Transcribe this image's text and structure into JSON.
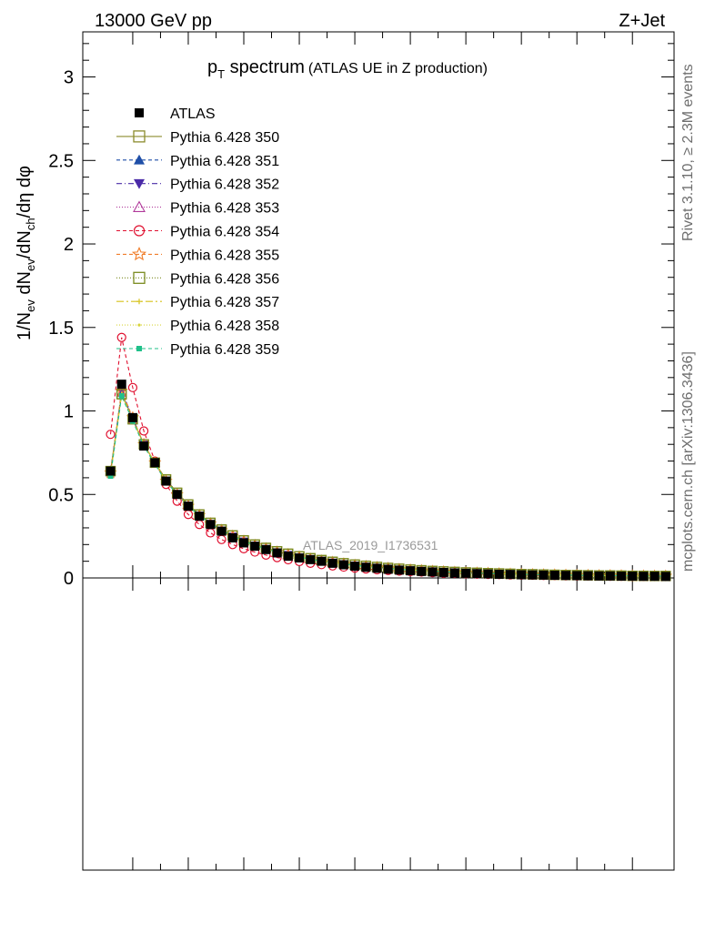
{
  "header": {
    "left": "13000 GeV pp",
    "right": "Z+Jet"
  },
  "side": {
    "rivet": "Rivet 3.1.10, ≥ 2.3M events",
    "mcplots": "mcplots.cern.ch [arXiv:1306.3436]"
  },
  "chart_data": {
    "type": "scatter",
    "title_main": "p",
    "title_sub": "T",
    "title_rest": " spectrum",
    "title_paren": "(ATLAS UE in Z production)",
    "ylabel": "1/N_ev dN_ev/dN_ch/dη dφ",
    "watermark": "ATLAS_2019_I1736531",
    "ylim": [
      0,
      3.27
    ],
    "yticks": [
      "0",
      "0.5",
      "1",
      "1.5",
      "2",
      "2.5",
      "3"
    ],
    "x": [
      0.6,
      0.8,
      1.0,
      1.2,
      1.4,
      1.6,
      1.8,
      2.0,
      2.2,
      2.4,
      2.6,
      2.8,
      3.0,
      3.2,
      3.4,
      3.6,
      3.8,
      4.0,
      4.2,
      4.4,
      4.6,
      4.8,
      5.0,
      5.2,
      5.4,
      5.6,
      5.8,
      6.0,
      6.2,
      6.4,
      6.6,
      6.8,
      7.0,
      7.2,
      7.4,
      7.6,
      7.8,
      8.0,
      8.2,
      8.4,
      8.6,
      8.8,
      9.0,
      9.2,
      9.4,
      9.6,
      9.8,
      10.0,
      10.2,
      10.4,
      10.6
    ],
    "legend": [
      {
        "name": "ATLAS",
        "color": "#000000",
        "marker": "square-filled",
        "dash": "none"
      },
      {
        "name": "Pythia 6.428 350",
        "color": "#8c8c2d",
        "marker": "square-open",
        "dash": "solid"
      },
      {
        "name": "Pythia 6.428 351",
        "color": "#1f4fa8",
        "marker": "triangle-up-filled",
        "dash": "4,3"
      },
      {
        "name": "Pythia 6.428 352",
        "color": "#4a2ba8",
        "marker": "triangle-down-filled",
        "dash": "6,3,1,3"
      },
      {
        "name": "Pythia 6.428 353",
        "color": "#b0389a",
        "marker": "triangle-up-open",
        "dash": "1,2"
      },
      {
        "name": "Pythia 6.428 354",
        "color": "#e0102f",
        "marker": "circle-open",
        "dash": "4,3"
      },
      {
        "name": "Pythia 6.428 355",
        "color": "#f07d2a",
        "marker": "star-open",
        "dash": "4,3"
      },
      {
        "name": "Pythia 6.428 356",
        "color": "#7a8a1e",
        "marker": "square-open",
        "dash": "1,2"
      },
      {
        "name": "Pythia 6.428 357",
        "color": "#d6c21a",
        "marker": "cross",
        "dash": "8,3,2,3"
      },
      {
        "name": "Pythia 6.428 358",
        "color": "#d8d43a",
        "marker": "dot",
        "dash": "1,2"
      },
      {
        "name": "Pythia 6.428 359",
        "color": "#20c08a",
        "marker": "square-small-filled",
        "dash": "4,3"
      }
    ],
    "series": [
      {
        "name": "ATLAS",
        "values": [
          0.64,
          1.16,
          0.96,
          0.79,
          0.69,
          0.58,
          0.5,
          0.43,
          0.37,
          0.32,
          0.28,
          0.24,
          0.21,
          0.19,
          0.17,
          0.15,
          0.13,
          0.12,
          0.11,
          0.1,
          0.088,
          0.079,
          0.071,
          0.064,
          0.058,
          0.052,
          0.047,
          0.043,
          0.039,
          0.036,
          0.033,
          0.03,
          0.028,
          0.026,
          0.024,
          0.022,
          0.021,
          0.019,
          0.018,
          0.017,
          0.016,
          0.015,
          0.014,
          0.013,
          0.012,
          0.012,
          0.011,
          0.011,
          0.01,
          0.01,
          0.009
        ]
      },
      {
        "name": "Pythia 6.428 350",
        "values": [
          0.64,
          1.1,
          0.95,
          0.8,
          0.69,
          0.59,
          0.51,
          0.44,
          0.38,
          0.33,
          0.29,
          0.255,
          0.225,
          0.2,
          0.18,
          0.16,
          0.145,
          0.13,
          0.118,
          0.107,
          0.097,
          0.088,
          0.08,
          0.073,
          0.066,
          0.06,
          0.055,
          0.05,
          0.046,
          0.042,
          0.039,
          0.036,
          0.033,
          0.031,
          0.029,
          0.027,
          0.025,
          0.023,
          0.022,
          0.021,
          0.019,
          0.018,
          0.017,
          0.016,
          0.015,
          0.015,
          0.014,
          0.013,
          0.013,
          0.012,
          0.012
        ]
      },
      {
        "name": "Pythia 6.428 351",
        "values": [
          0.63,
          1.11,
          0.95,
          0.8,
          0.69,
          0.58,
          0.5,
          0.43,
          0.375,
          0.325,
          0.285,
          0.25,
          0.22,
          0.195,
          0.175,
          0.155,
          0.14,
          0.125,
          0.113,
          0.102,
          0.093,
          0.084,
          0.076,
          0.069,
          0.063,
          0.057,
          0.052,
          0.048,
          0.044,
          0.04,
          0.037,
          0.034,
          0.031,
          0.029,
          0.027,
          0.025,
          0.023,
          0.022,
          0.02,
          0.019,
          0.018,
          0.017,
          0.016,
          0.015,
          0.014,
          0.014,
          0.013,
          0.012,
          0.012,
          0.011,
          0.011
        ]
      },
      {
        "name": "Pythia 6.428 352",
        "values": [
          0.63,
          1.12,
          0.96,
          0.8,
          0.69,
          0.58,
          0.5,
          0.43,
          0.375,
          0.325,
          0.285,
          0.25,
          0.22,
          0.195,
          0.175,
          0.155,
          0.14,
          0.125,
          0.113,
          0.102,
          0.093,
          0.084,
          0.076,
          0.069,
          0.063,
          0.057,
          0.052,
          0.048,
          0.044,
          0.04,
          0.037,
          0.034,
          0.031,
          0.029,
          0.027,
          0.025,
          0.023,
          0.022,
          0.02,
          0.019,
          0.018,
          0.017,
          0.016,
          0.015,
          0.014,
          0.014,
          0.013,
          0.012,
          0.012,
          0.011,
          0.011
        ]
      },
      {
        "name": "Pythia 6.428 353",
        "values": [
          0.64,
          1.11,
          0.95,
          0.8,
          0.69,
          0.58,
          0.5,
          0.43,
          0.375,
          0.325,
          0.285,
          0.25,
          0.22,
          0.195,
          0.175,
          0.155,
          0.14,
          0.125,
          0.113,
          0.102,
          0.093,
          0.084,
          0.076,
          0.069,
          0.063,
          0.057,
          0.052,
          0.048,
          0.044,
          0.04,
          0.037,
          0.034,
          0.031,
          0.029,
          0.027,
          0.025,
          0.023,
          0.022,
          0.02,
          0.019,
          0.018,
          0.017,
          0.016,
          0.015,
          0.014,
          0.014,
          0.013,
          0.012,
          0.012,
          0.011,
          0.011
        ]
      },
      {
        "name": "Pythia 6.428 354",
        "values": [
          0.86,
          1.44,
          1.14,
          0.88,
          0.7,
          0.56,
          0.46,
          0.38,
          0.32,
          0.27,
          0.23,
          0.2,
          0.175,
          0.155,
          0.137,
          0.122,
          0.109,
          0.098,
          0.088,
          0.08,
          0.072,
          0.065,
          0.059,
          0.054,
          0.049,
          0.045,
          0.041,
          0.038,
          0.035,
          0.032,
          0.029,
          0.027,
          0.025,
          0.023,
          0.021,
          0.02,
          0.018,
          0.017,
          0.016,
          0.015,
          0.014,
          0.013,
          0.012,
          0.012,
          0.011,
          0.01,
          0.01,
          0.009,
          0.009,
          0.008,
          0.008
        ]
      },
      {
        "name": "Pythia 6.428 355",
        "values": [
          0.63,
          1.12,
          0.96,
          0.8,
          0.69,
          0.58,
          0.5,
          0.43,
          0.375,
          0.325,
          0.285,
          0.25,
          0.22,
          0.195,
          0.175,
          0.155,
          0.14,
          0.125,
          0.113,
          0.102,
          0.093,
          0.084,
          0.076,
          0.069,
          0.063,
          0.057,
          0.052,
          0.048,
          0.044,
          0.04,
          0.037,
          0.034,
          0.031,
          0.029,
          0.027,
          0.025,
          0.023,
          0.022,
          0.02,
          0.019,
          0.018,
          0.017,
          0.016,
          0.015,
          0.014,
          0.014,
          0.013,
          0.012,
          0.012,
          0.011,
          0.011
        ]
      },
      {
        "name": "Pythia 6.428 356",
        "values": [
          0.64,
          1.1,
          0.95,
          0.8,
          0.69,
          0.59,
          0.51,
          0.44,
          0.38,
          0.33,
          0.29,
          0.255,
          0.225,
          0.2,
          0.18,
          0.16,
          0.145,
          0.13,
          0.118,
          0.107,
          0.097,
          0.088,
          0.08,
          0.073,
          0.066,
          0.06,
          0.055,
          0.05,
          0.046,
          0.042,
          0.039,
          0.036,
          0.033,
          0.031,
          0.029,
          0.027,
          0.025,
          0.023,
          0.022,
          0.021,
          0.019,
          0.018,
          0.017,
          0.016,
          0.015,
          0.015,
          0.014,
          0.013,
          0.013,
          0.012,
          0.012
        ]
      },
      {
        "name": "Pythia 6.428 357",
        "values": [
          0.62,
          1.1,
          0.95,
          0.8,
          0.69,
          0.58,
          0.5,
          0.43,
          0.375,
          0.325,
          0.285,
          0.25,
          0.22,
          0.195,
          0.175,
          0.155,
          0.14,
          0.125,
          0.113,
          0.102,
          0.093,
          0.084,
          0.076,
          0.069,
          0.063,
          0.057,
          0.052,
          0.048,
          0.044,
          0.04,
          0.037,
          0.034,
          0.031,
          0.029,
          0.027,
          0.025,
          0.023,
          0.022,
          0.02,
          0.019,
          0.018,
          0.017,
          0.016,
          0.015,
          0.014,
          0.014,
          0.013,
          0.012,
          0.012,
          0.011,
          0.011
        ]
      },
      {
        "name": "Pythia 6.428 358",
        "values": [
          0.62,
          1.1,
          0.95,
          0.8,
          0.69,
          0.58,
          0.5,
          0.43,
          0.375,
          0.325,
          0.285,
          0.25,
          0.22,
          0.195,
          0.175,
          0.155,
          0.14,
          0.125,
          0.113,
          0.102,
          0.093,
          0.084,
          0.076,
          0.069,
          0.063,
          0.057,
          0.052,
          0.048,
          0.044,
          0.04,
          0.037,
          0.034,
          0.031,
          0.029,
          0.027,
          0.025,
          0.023,
          0.022,
          0.02,
          0.019,
          0.018,
          0.017,
          0.016,
          0.015,
          0.014,
          0.014,
          0.013,
          0.012,
          0.012,
          0.011,
          0.011
        ]
      },
      {
        "name": "Pythia 6.428 359",
        "values": [
          0.61,
          1.09,
          0.94,
          0.79,
          0.68,
          0.58,
          0.5,
          0.43,
          0.375,
          0.325,
          0.285,
          0.25,
          0.22,
          0.195,
          0.175,
          0.155,
          0.14,
          0.125,
          0.113,
          0.102,
          0.093,
          0.084,
          0.076,
          0.069,
          0.063,
          0.057,
          0.052,
          0.048,
          0.044,
          0.04,
          0.037,
          0.034,
          0.031,
          0.029,
          0.027,
          0.025,
          0.023,
          0.022,
          0.02,
          0.019,
          0.018,
          0.017,
          0.016,
          0.015,
          0.014,
          0.014,
          0.013,
          0.012,
          0.012,
          0.011,
          0.011
        ]
      }
    ]
  }
}
